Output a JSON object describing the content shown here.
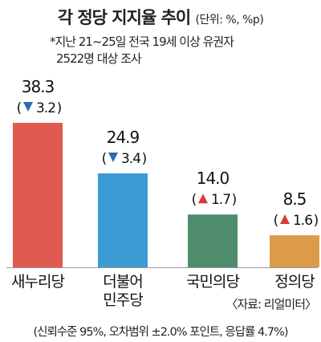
{
  "title": "각 정당 지지율 추이",
  "unit": "(단위: %, %p)",
  "subtitle_line1": "*지난 21~25일 전국 19세 이상 유권자",
  "subtitle_line2": "2522명 대상 조사",
  "source": "〈자료: 리얼미터〉",
  "footer": "(신뢰수준 95%, 오차범위 ±2.0% 포인트, 응답률 4.7%)",
  "colors": {
    "up": "#d63a3a",
    "down": "#2b6cb0",
    "baseline": "#999999"
  },
  "chart_data": {
    "type": "bar",
    "title": "각 정당 지지율 추이",
    "xlabel": "",
    "ylabel": "",
    "ylim": [
      0,
      40
    ],
    "categories": [
      "새누리당",
      "더불어\n민주당",
      "국민의당",
      "정의당"
    ],
    "values": [
      38.3,
      24.9,
      14.0,
      8.5
    ],
    "value_labels": [
      "38.3",
      "24.9",
      "14.0",
      "8.5"
    ],
    "changes": [
      {
        "direction": "down",
        "value": "3.2"
      },
      {
        "direction": "down",
        "value": "3.4"
      },
      {
        "direction": "up",
        "value": "1.7"
      },
      {
        "direction": "up",
        "value": "1.6"
      }
    ],
    "bar_colors": [
      "#e05a4f",
      "#3b9bd3",
      "#4f8d6c",
      "#dd9b49"
    ]
  }
}
